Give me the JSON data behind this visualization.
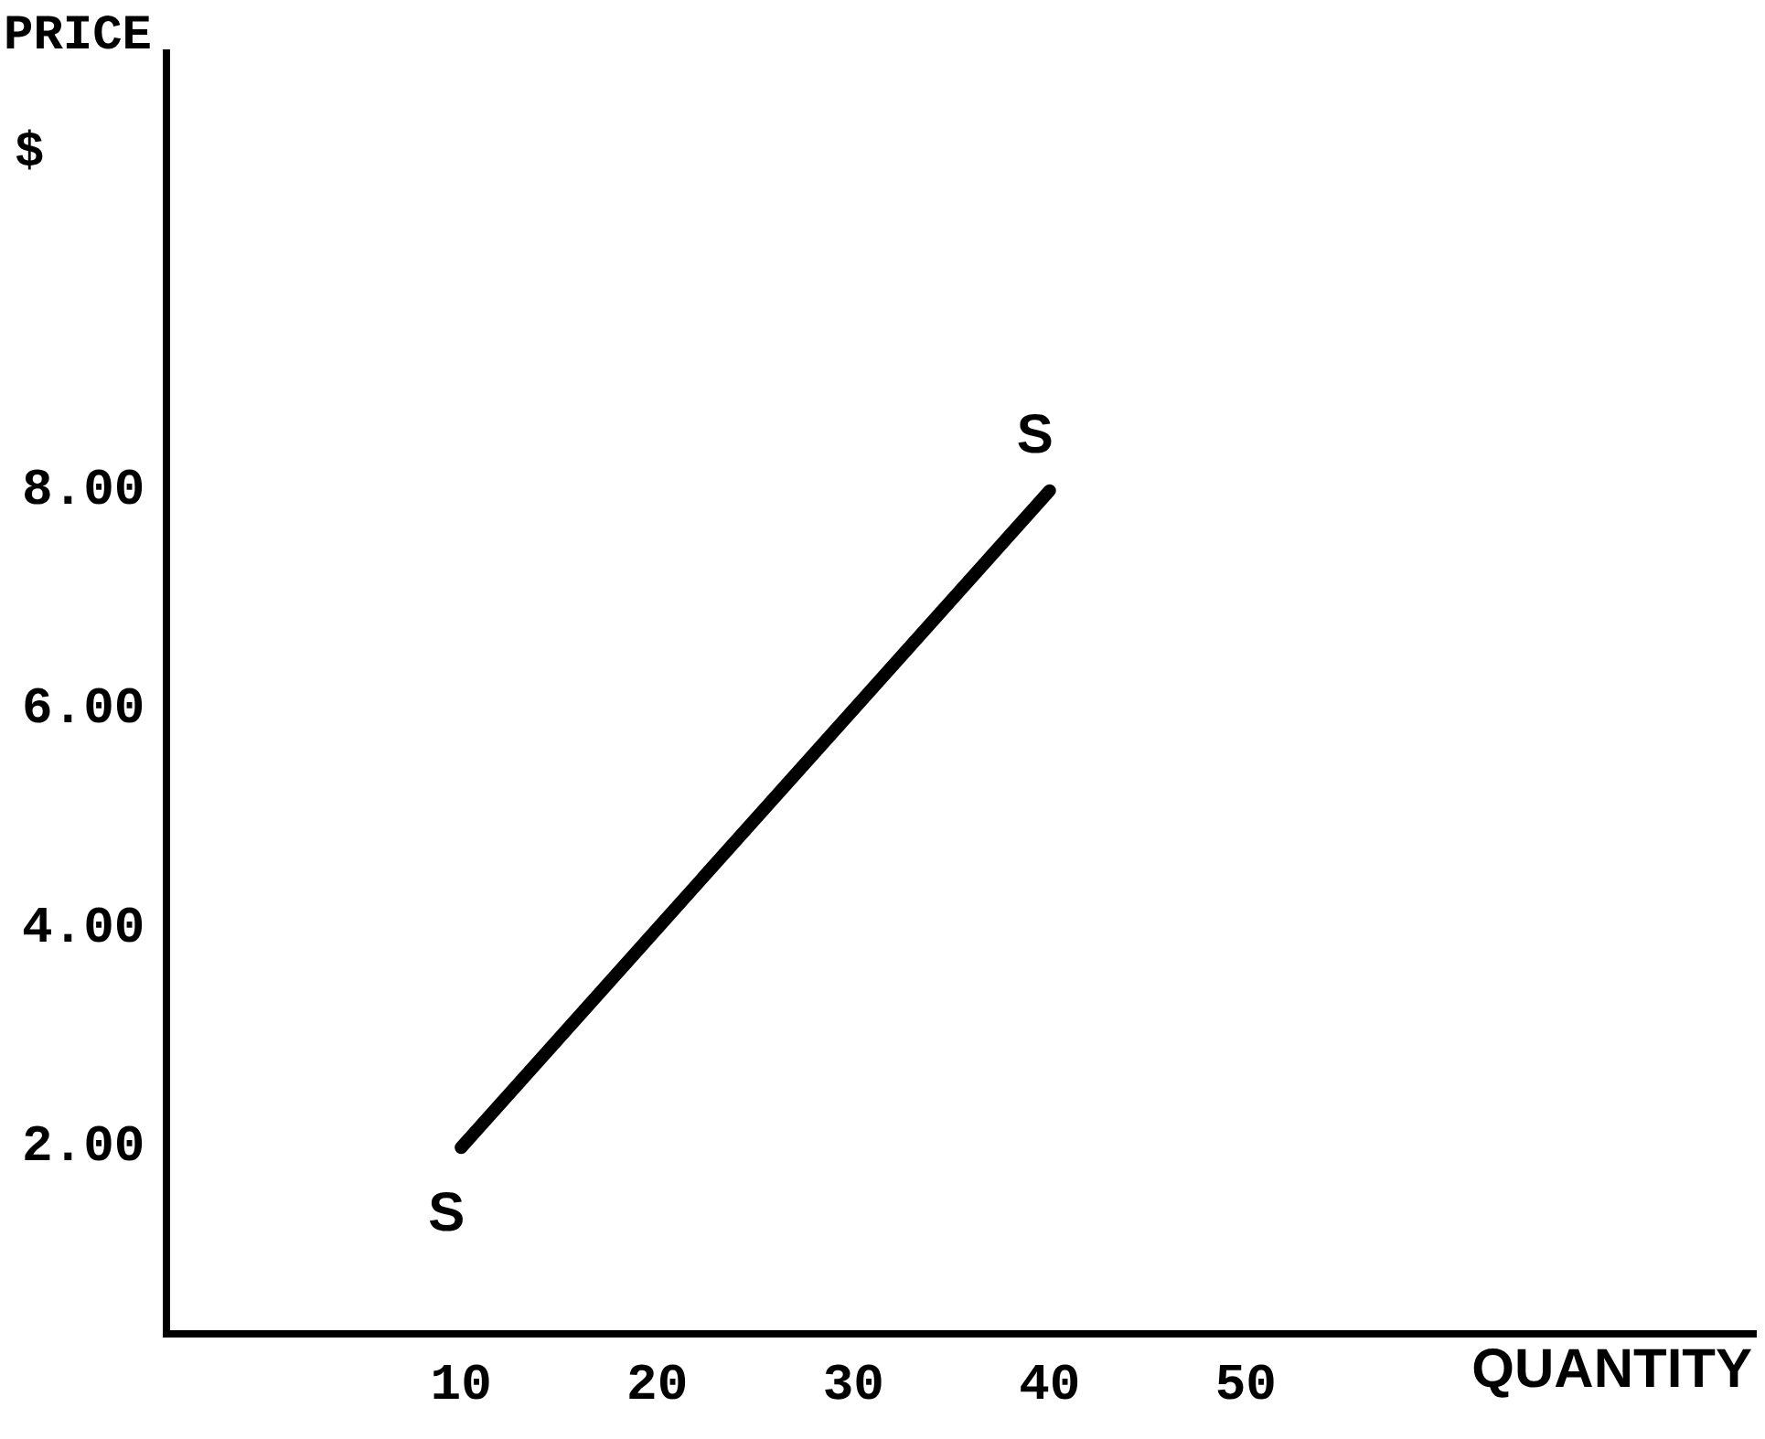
{
  "chart_data": {
    "type": "line",
    "xlabel": "QUANTITY",
    "ylabel": "PRICE\n$",
    "x": [
      10,
      40
    ],
    "series": [
      {
        "color": "#000000",
        "values": [
          2,
          8
        ]
      }
    ],
    "xlim": [
      -5,
      76
    ],
    "ylim": [
      0.3,
      12
    ],
    "xticks": [
      10,
      20,
      30,
      40,
      50
    ],
    "yticks": [
      {
        "value": 2,
        "label": "2.00"
      },
      {
        "value": 4,
        "label": "4.00"
      },
      {
        "value": 6,
        "label": "6.00"
      },
      {
        "value": 8,
        "label": "8.00"
      }
    ],
    "grid": false,
    "legend": false,
    "marker": "none",
    "line_style": "solid",
    "annotations": [
      {
        "text": "S",
        "x": 10,
        "y": 2
      },
      {
        "text": "S",
        "x": 40,
        "y": 8
      }
    ]
  }
}
